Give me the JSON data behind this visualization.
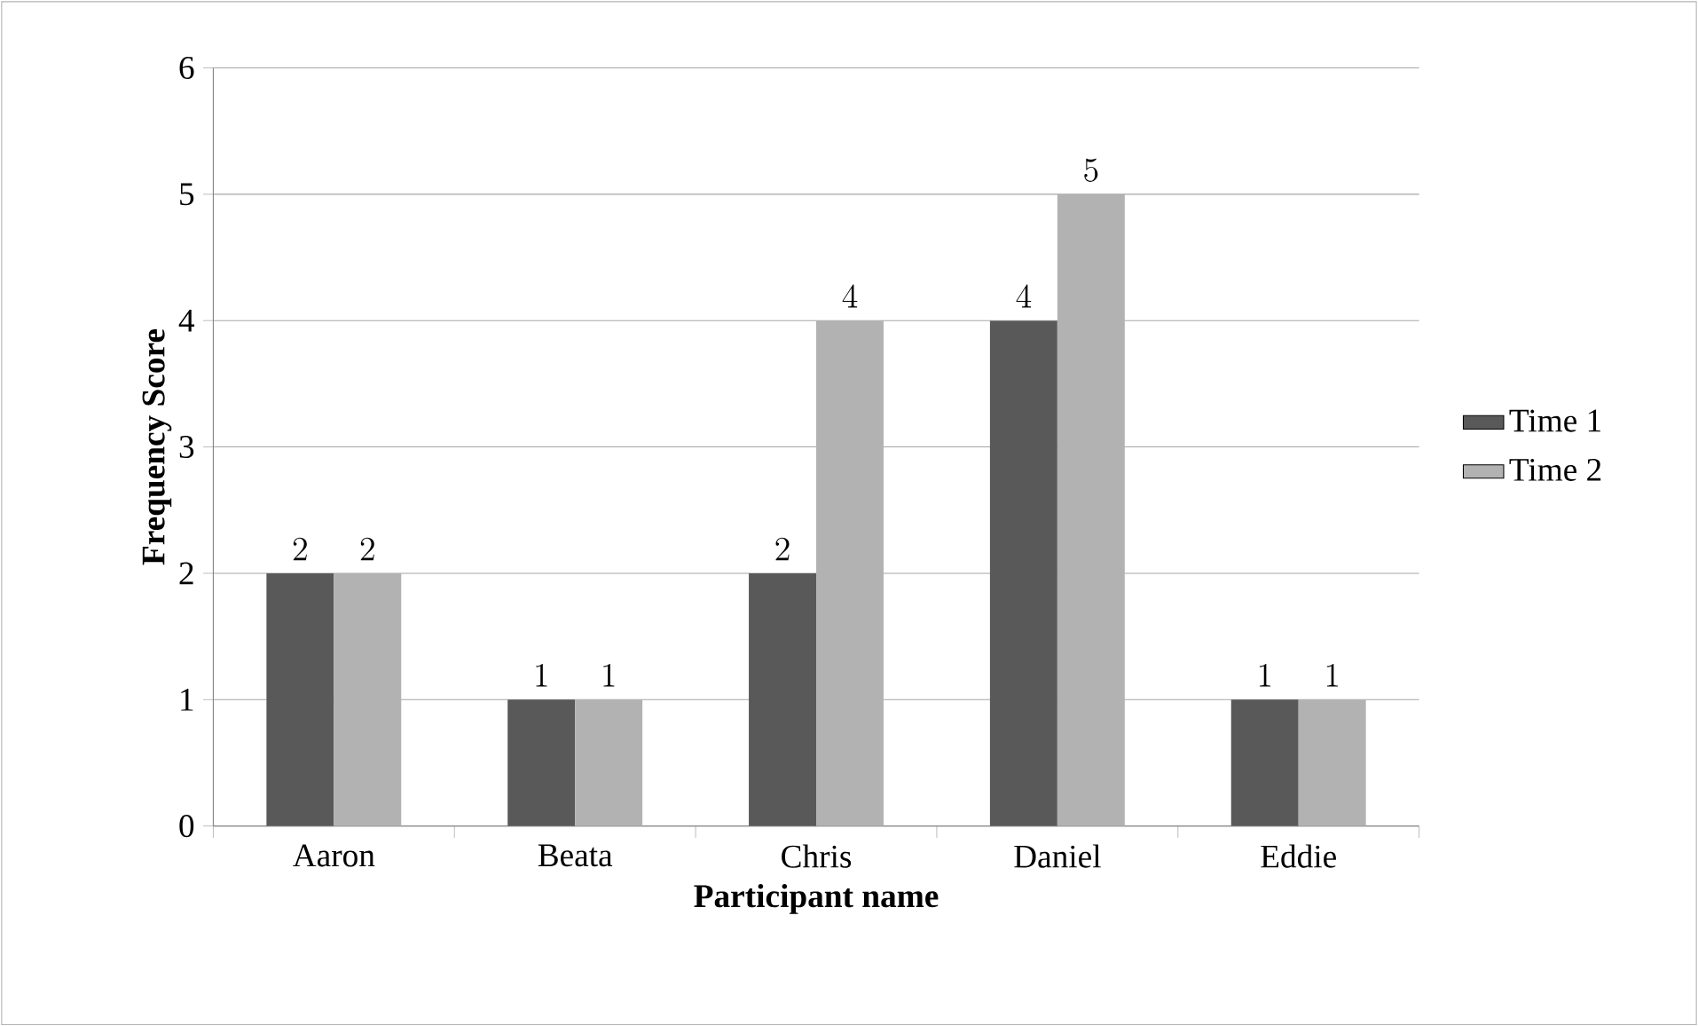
{
  "chart_data": {
    "type": "bar",
    "xlabel": "Participant name",
    "ylabel": "Frequency Score",
    "categories": [
      "Aaron",
      "Beata",
      "Chris",
      "Daniel",
      "Eddie"
    ],
    "series": [
      {
        "name": "Time 1",
        "color": "#595959",
        "values": [
          2,
          1,
          2,
          4,
          1
        ]
      },
      {
        "name": "Time 2",
        "color": "#b2b2b2",
        "values": [
          2,
          1,
          4,
          5,
          1
        ]
      }
    ],
    "ylim": [
      0,
      6
    ],
    "yticks": [
      0,
      1,
      2,
      3,
      4,
      5,
      6
    ],
    "grid": "y",
    "legend": "right",
    "data_labels": true
  }
}
